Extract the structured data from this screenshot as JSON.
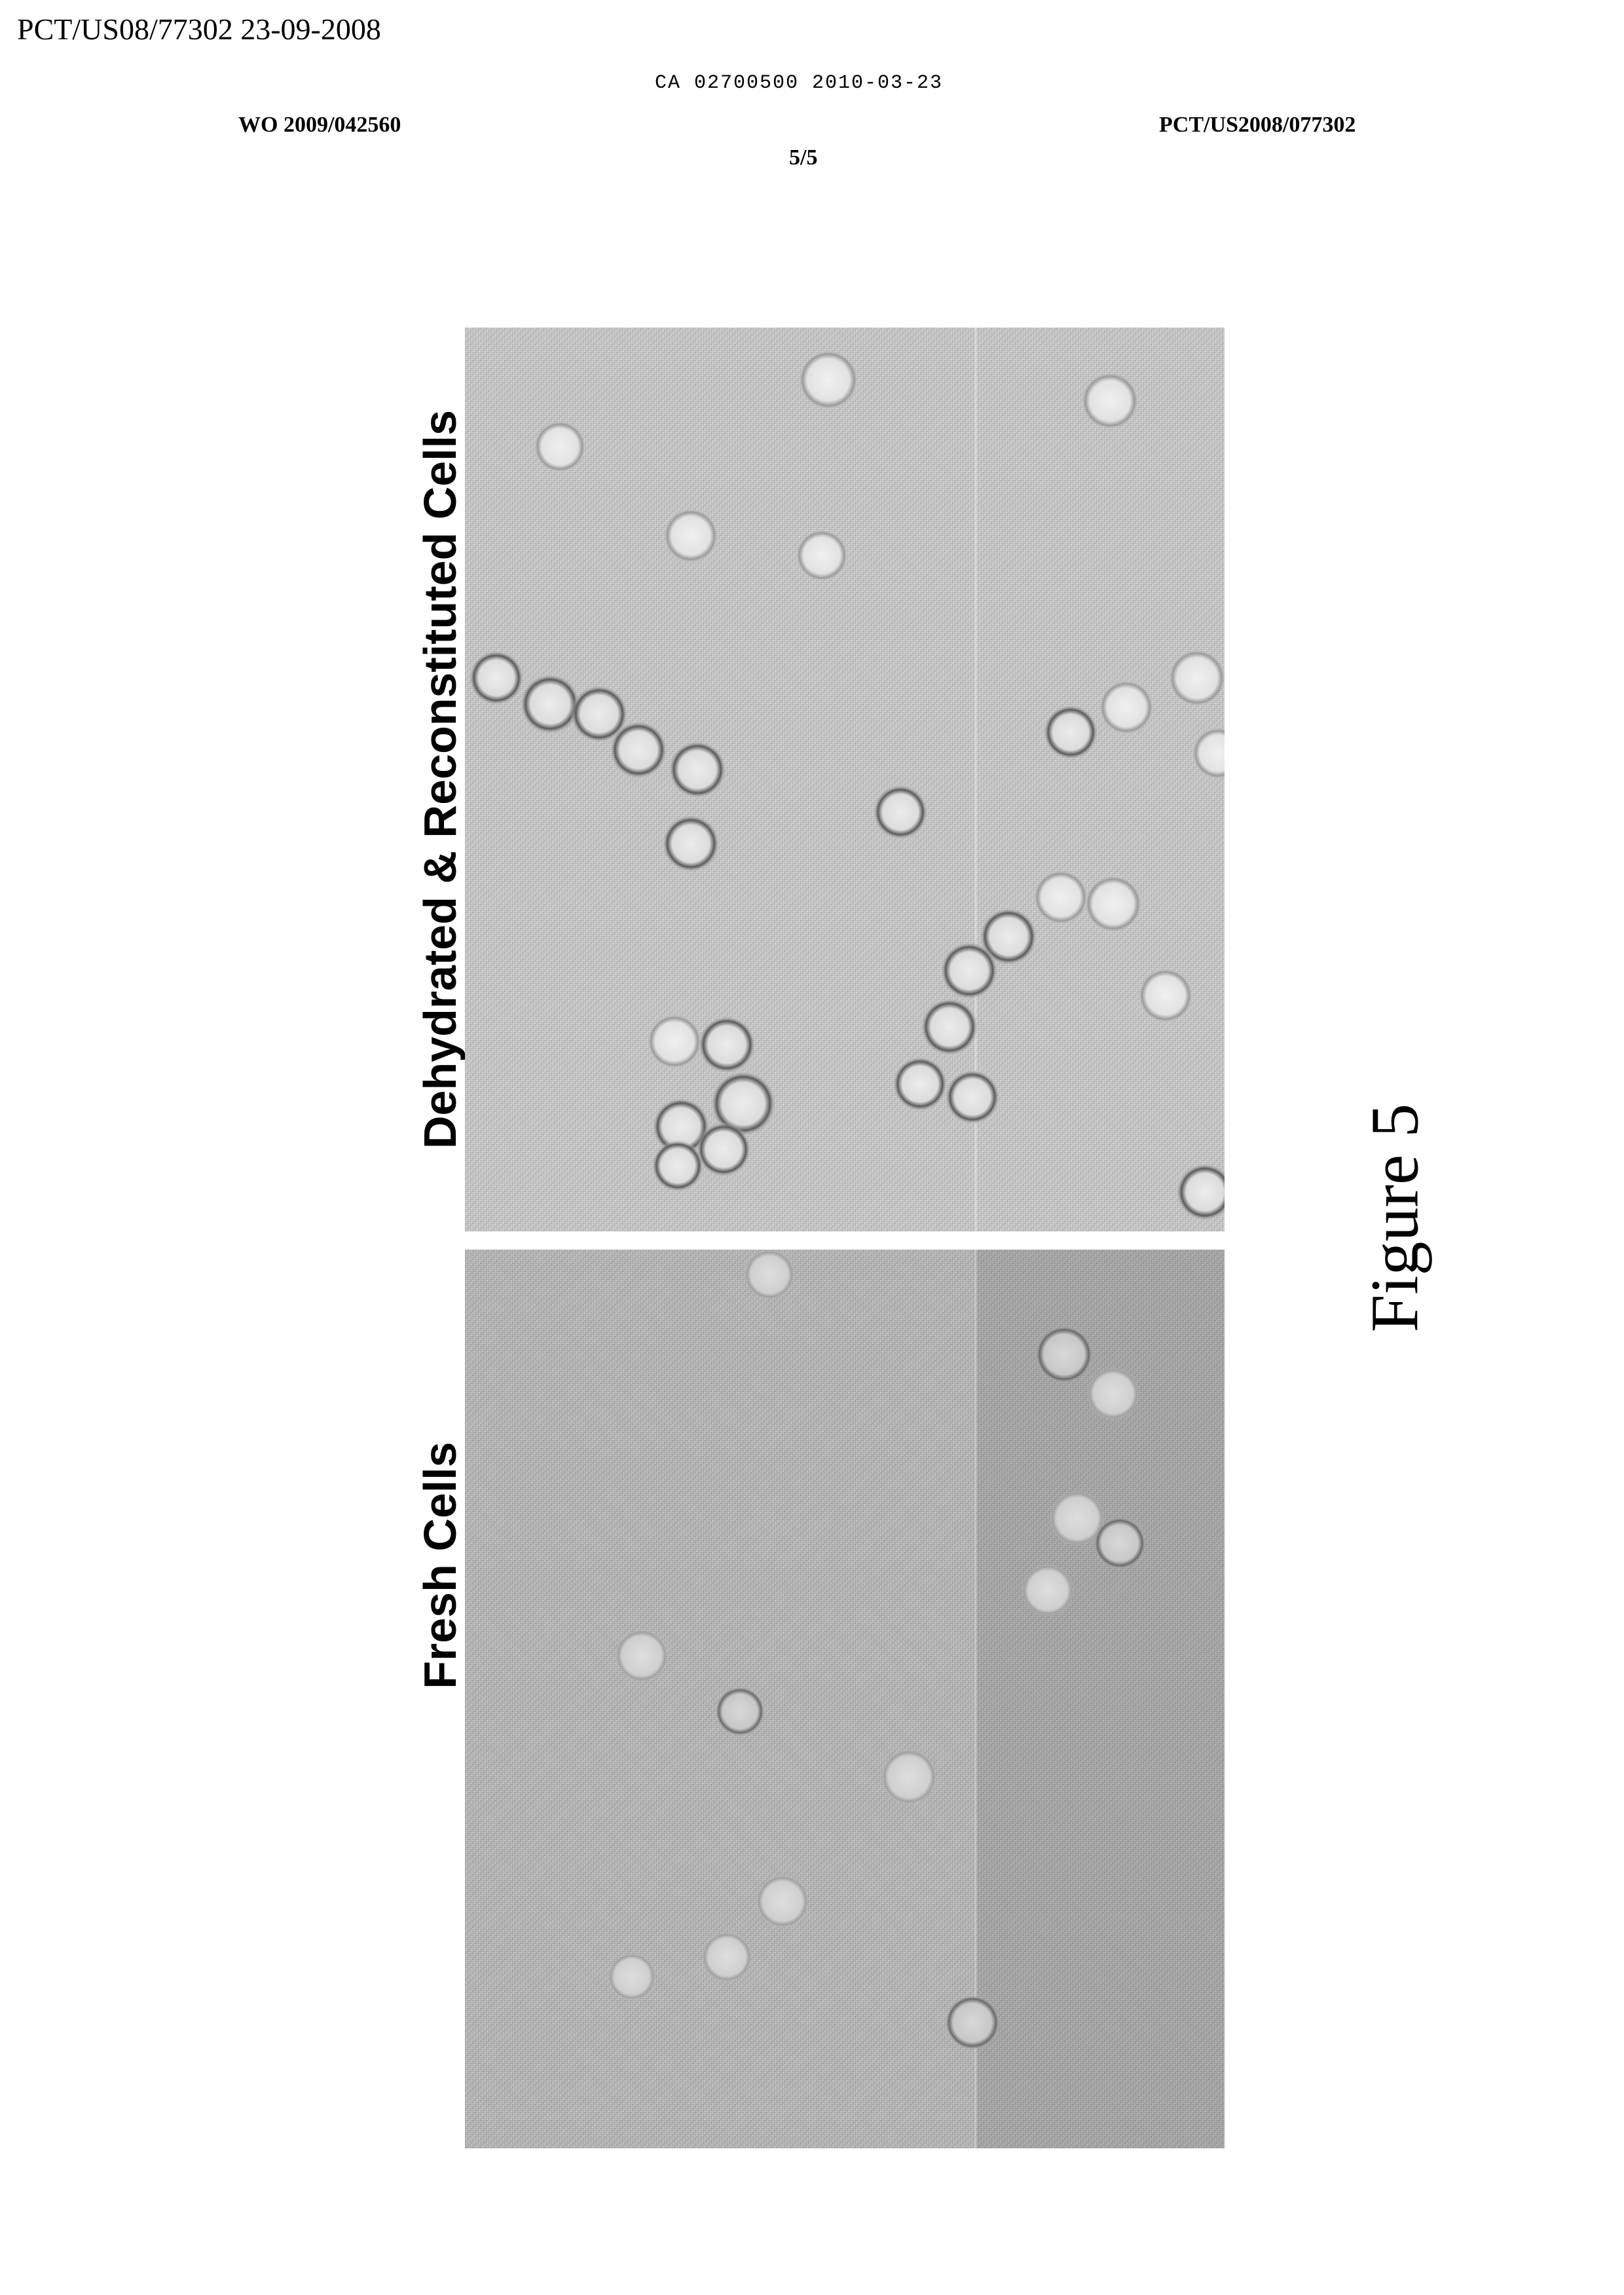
{
  "header": {
    "stamp": "PCT/US08/77302 23-09-2008",
    "ca_number": "CA 02700500 2010-03-23",
    "wo_number": "WO 2009/042560",
    "pct_number": "PCT/US2008/077302",
    "sheet": "5/5"
  },
  "figure": {
    "caption": "Figure 5",
    "panels": [
      {
        "label": "Dehydrated & Reconstituted  Cells"
      },
      {
        "label": "Fresh Cells"
      }
    ]
  }
}
